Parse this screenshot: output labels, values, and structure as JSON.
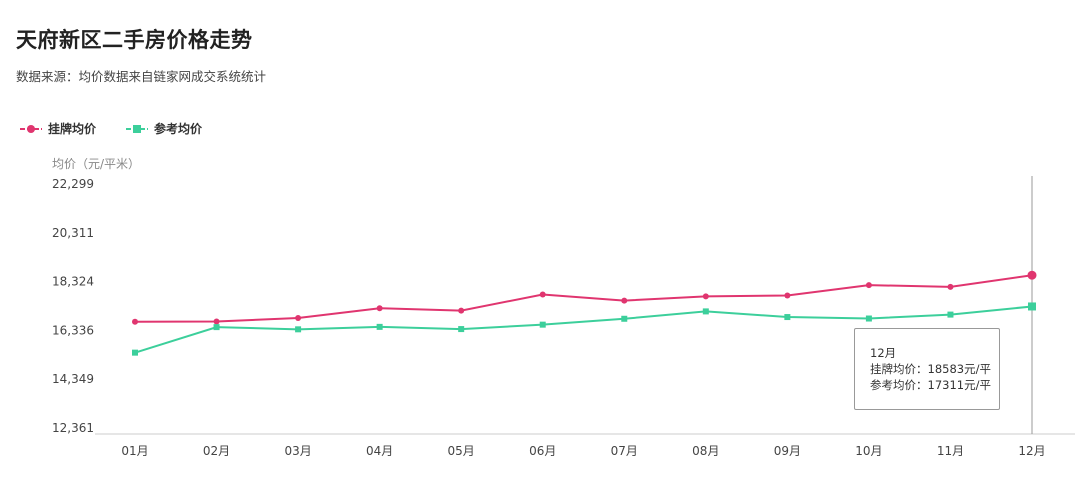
{
  "title": "天府新区二手房价格走势",
  "subtitle": "数据来源：均价数据来自链家网成交系统统计",
  "colors": {
    "listing": "#e0356f",
    "reference": "#3ccf9b",
    "axis": "#cccccc",
    "crosshair": "#999999"
  },
  "legend": [
    {
      "label": "挂牌均价",
      "color": "#e0356f",
      "marker": "circle"
    },
    {
      "label": "参考均价",
      "color": "#3ccf9b",
      "marker": "square"
    }
  ],
  "tooltip": {
    "month": "12月",
    "listing_line": "挂牌均价：18583元/平",
    "reference_line": "参考均价：17311元/平"
  },
  "chart_data": {
    "type": "line",
    "ylabel": "均价（元/平米）",
    "ylim": [
      12361,
      22299
    ],
    "yticks": [
      "22,299",
      "20,311",
      "18,324",
      "16,336",
      "14,349",
      "12,361"
    ],
    "categories": [
      "01月",
      "02月",
      "03月",
      "04月",
      "05月",
      "06月",
      "07月",
      "08月",
      "09月",
      "10月",
      "11月",
      "12月"
    ],
    "series": [
      {
        "name": "挂牌均价",
        "color": "#e0356f",
        "marker": "circle",
        "values": [
          16690,
          16700,
          16840,
          17240,
          17140,
          17800,
          17550,
          17720,
          17760,
          18180,
          18110,
          18583
        ]
      },
      {
        "name": "参考均价",
        "color": "#3ccf9b",
        "marker": "square",
        "values": [
          15430,
          16470,
          16380,
          16480,
          16390,
          16570,
          16810,
          17110,
          16880,
          16820,
          16980,
          17311
        ]
      }
    ],
    "highlight_index": 11,
    "grid": false,
    "legend_position": "top-left"
  }
}
